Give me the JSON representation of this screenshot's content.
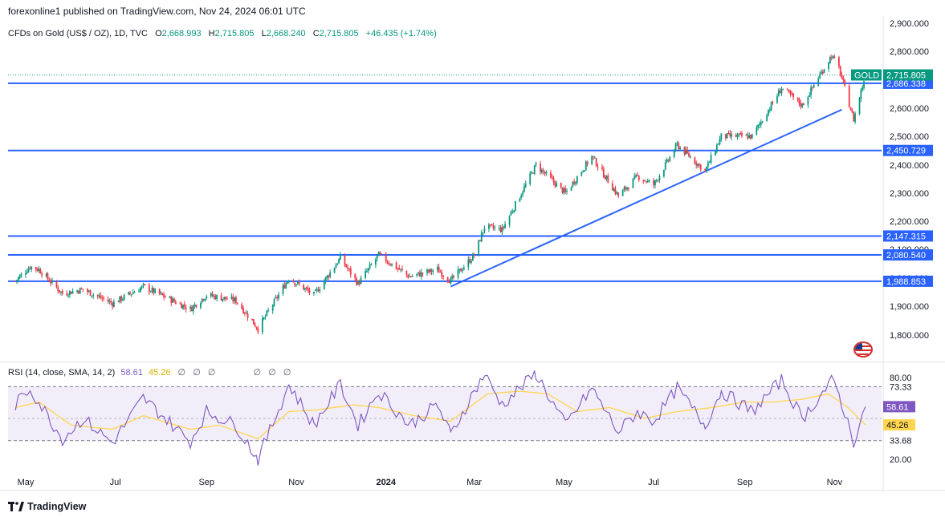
{
  "header": {
    "published_by": "forexonline1 published on TradingView.com, Nov 24, 2024 06:01 UTC"
  },
  "legend": {
    "symbol": "CFDs on Gold (US$ / OZ), 1D, TVC",
    "o_label": "O",
    "o_value": "2,668.993",
    "h_label": "H",
    "h_value": "2,715.805",
    "l_label": "L",
    "l_value": "2,668.240",
    "c_label": "C",
    "c_value": "2,715.805",
    "change": "+46.435 (+1.74%)"
  },
  "rsi_legend": {
    "label": "RSI (14, close, SMA, 14, 2)",
    "rsi_value": "58.61",
    "sma_value": "45.26",
    "na_glyph": "∅"
  },
  "footer": {
    "brand": "TradingView"
  },
  "colors": {
    "up": "#089981",
    "down": "#f23645",
    "hline": "#2962ff",
    "rsi": "#7e57c2",
    "rsi_sma": "#ffd54f",
    "rsi_band": "#ede7f6",
    "label_blue": "#2962ff",
    "gold_label": "#089981"
  },
  "chart_data": [
    {
      "type": "candlestick",
      "title": "CFDs on Gold (US$ / OZ), 1D, TVC",
      "x_labels": [
        "May",
        "Jul",
        "Sep",
        "Nov",
        "2024",
        "Mar",
        "May",
        "Jul",
        "Sep",
        "Nov"
      ],
      "y_ticks": [
        "2,900.000",
        "2,800.000",
        "2,700.000",
        "2,600.000",
        "2,500.000",
        "2,400.000",
        "2,300.000",
        "2,200.000",
        "2,100.000",
        "2,000.000",
        "1,900.000",
        "1,800.000"
      ],
      "ylim": [
        1780,
        2910
      ],
      "price_levels": [
        {
          "label": "2,686.338",
          "value": 2686.338
        },
        {
          "label": "2,450.729",
          "value": 2450.729
        },
        {
          "label": "2,147.315",
          "value": 2147.315
        },
        {
          "label": "2,080.540",
          "value": 2080.54
        },
        {
          "label": "1,988.853",
          "value": 1988.853
        }
      ],
      "last_price": {
        "name": "GOLD",
        "label": "2,715.805",
        "value": 2715.805
      },
      "trendline": {
        "from": {
          "x": "2024-02-14",
          "y": 1970
        },
        "to": {
          "x": "2024-11-06",
          "y": 2595
        }
      },
      "close_path": [
        [
          "2023-04-24",
          1990
        ],
        [
          "2023-05-04",
          2040
        ],
        [
          "2023-05-10",
          2030
        ],
        [
          "2023-05-26",
          1945
        ],
        [
          "2023-06-09",
          1960
        ],
        [
          "2023-06-29",
          1910
        ],
        [
          "2023-07-20",
          1970
        ],
        [
          "2023-08-21",
          1890
        ],
        [
          "2023-09-01",
          1940
        ],
        [
          "2023-09-21",
          1920
        ],
        [
          "2023-10-06",
          1822
        ],
        [
          "2023-10-27",
          2000
        ],
        [
          "2023-11-13",
          1940
        ],
        [
          "2023-12-01",
          2070
        ],
        [
          "2023-12-13",
          1980
        ],
        [
          "2023-12-27",
          2080
        ],
        [
          "2024-01-17",
          2005
        ],
        [
          "2024-02-05",
          2030
        ],
        [
          "2024-02-14",
          1990
        ],
        [
          "2024-03-01",
          2080
        ],
        [
          "2024-03-08",
          2180
        ],
        [
          "2024-03-20",
          2170
        ],
        [
          "2024-04-12",
          2400
        ],
        [
          "2024-05-02",
          2300
        ],
        [
          "2024-05-20",
          2430
        ],
        [
          "2024-06-07",
          2290
        ],
        [
          "2024-06-20",
          2360
        ],
        [
          "2024-07-01",
          2330
        ],
        [
          "2024-07-17",
          2470
        ],
        [
          "2024-08-05",
          2380
        ],
        [
          "2024-08-16",
          2500
        ],
        [
          "2024-09-06",
          2500
        ],
        [
          "2024-09-26",
          2670
        ],
        [
          "2024-10-10",
          2610
        ],
        [
          "2024-10-30",
          2785
        ],
        [
          "2024-11-04",
          2740
        ],
        [
          "2024-11-14",
          2560
        ],
        [
          "2024-11-22",
          2715.805
        ]
      ]
    },
    {
      "type": "line",
      "title": "RSI (14, close, SMA, 14, 2)",
      "y_ticks": [
        "80.00",
        "73.33",
        "33.68",
        "20.00"
      ],
      "band_levels": [
        73.33,
        33.68
      ],
      "ylim": [
        18,
        82
      ],
      "series": [
        {
          "values_label": "58.61",
          "values": [
            [
              "2023-04-24",
              60
            ],
            [
              "2023-05-04",
              72
            ],
            [
              "2023-05-26",
              35
            ],
            [
              "2023-06-09",
              50
            ],
            [
              "2023-06-29",
              32
            ],
            [
              "2023-07-20",
              65
            ],
            [
              "2023-08-21",
              33
            ],
            [
              "2023-09-01",
              55
            ],
            [
              "2023-09-21",
              45
            ],
            [
              "2023-10-06",
              20
            ],
            [
              "2023-10-27",
              75
            ],
            [
              "2023-11-13",
              45
            ],
            [
              "2023-12-01",
              75
            ],
            [
              "2023-12-13",
              45
            ],
            [
              "2023-12-27",
              70
            ],
            [
              "2024-01-17",
              45
            ],
            [
              "2024-02-05",
              60
            ],
            [
              "2024-02-14",
              38
            ],
            [
              "2024-03-01",
              70
            ],
            [
              "2024-03-08",
              82
            ],
            [
              "2024-03-20",
              60
            ],
            [
              "2024-04-12",
              83
            ],
            [
              "2024-05-02",
              45
            ],
            [
              "2024-05-20",
              72
            ],
            [
              "2024-06-07",
              40
            ],
            [
              "2024-06-20",
              55
            ],
            [
              "2024-07-01",
              48
            ],
            [
              "2024-07-17",
              72
            ],
            [
              "2024-08-05",
              45
            ],
            [
              "2024-08-16",
              70
            ],
            [
              "2024-09-06",
              55
            ],
            [
              "2024-09-26",
              78
            ],
            [
              "2024-10-10",
              50
            ],
            [
              "2024-10-30",
              77
            ],
            [
              "2024-11-04",
              68
            ],
            [
              "2024-11-14",
              33
            ],
            [
              "2024-11-22",
              58.61
            ]
          ]
        },
        {
          "values_label": "45.26",
          "values": [
            [
              "2023-04-24",
              58
            ],
            [
              "2023-05-10",
              62
            ],
            [
              "2023-06-01",
              45
            ],
            [
              "2023-06-29",
              42
            ],
            [
              "2023-07-20",
              52
            ],
            [
              "2023-08-21",
              42
            ],
            [
              "2023-09-10",
              45
            ],
            [
              "2023-10-06",
              35
            ],
            [
              "2023-10-27",
              55
            ],
            [
              "2023-11-13",
              56
            ],
            [
              "2023-12-10",
              60
            ],
            [
              "2023-12-27",
              58
            ],
            [
              "2024-01-20",
              52
            ],
            [
              "2024-02-14",
              48
            ],
            [
              "2024-03-10",
              68
            ],
            [
              "2024-04-01",
              70
            ],
            [
              "2024-04-20",
              68
            ],
            [
              "2024-05-10",
              55
            ],
            [
              "2024-06-01",
              58
            ],
            [
              "2024-06-25",
              50
            ],
            [
              "2024-07-17",
              55
            ],
            [
              "2024-08-10",
              58
            ],
            [
              "2024-09-01",
              62
            ],
            [
              "2024-09-20",
              62
            ],
            [
              "2024-10-10",
              64
            ],
            [
              "2024-10-28",
              68
            ],
            [
              "2024-11-10",
              58
            ],
            [
              "2024-11-22",
              45.26
            ]
          ]
        }
      ]
    }
  ]
}
